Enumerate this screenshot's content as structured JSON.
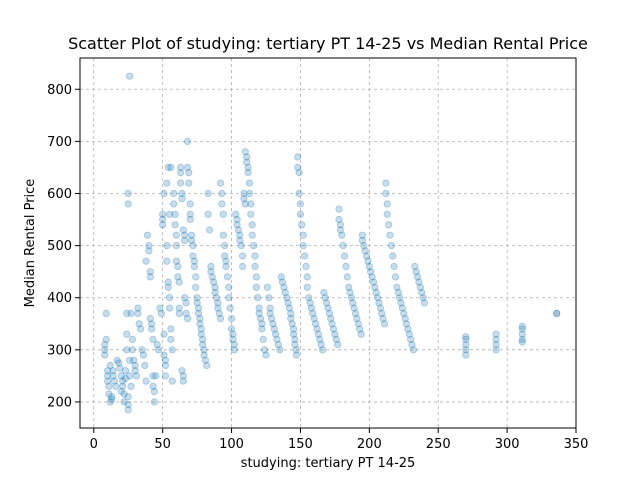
{
  "chart_data": {
    "type": "scatter",
    "title": "Scatter Plot of studying: tertiary PT 14-25 vs Median Rental Price",
    "xlabel": "studying: tertiary PT 14-25",
    "ylabel": "Median Rental Price",
    "xlim": [
      -10,
      350
    ],
    "ylim": [
      150,
      860
    ],
    "xticks": [
      0,
      50,
      100,
      150,
      200,
      250,
      300,
      350
    ],
    "yticks": [
      200,
      300,
      400,
      500,
      600,
      700,
      800
    ],
    "grid": true,
    "point_color": "#1f77b4",
    "point_alpha": 0.25,
    "points": [
      [
        8,
        310
      ],
      [
        8,
        300
      ],
      [
        8,
        290
      ],
      [
        9,
        320
      ],
      [
        9,
        370
      ],
      [
        10,
        260
      ],
      [
        10,
        250
      ],
      [
        10,
        240
      ],
      [
        11,
        230
      ],
      [
        11,
        215
      ],
      [
        12,
        270
      ],
      [
        12,
        200
      ],
      [
        13,
        205
      ],
      [
        13,
        210
      ],
      [
        14,
        250
      ],
      [
        14,
        260
      ],
      [
        15,
        240
      ],
      [
        16,
        230
      ],
      [
        17,
        280
      ],
      [
        18,
        275
      ],
      [
        19,
        265
      ],
      [
        20,
        250
      ],
      [
        20,
        220
      ],
      [
        21,
        240
      ],
      [
        21,
        230
      ],
      [
        22,
        215
      ],
      [
        22,
        200
      ],
      [
        23,
        260
      ],
      [
        23,
        245
      ],
      [
        24,
        370
      ],
      [
        24,
        330
      ],
      [
        24,
        300
      ],
      [
        25,
        185
      ],
      [
        25,
        195
      ],
      [
        25,
        210
      ],
      [
        25,
        600
      ],
      [
        25,
        580
      ],
      [
        26,
        825
      ],
      [
        26,
        280
      ],
      [
        26,
        250
      ],
      [
        27,
        370
      ],
      [
        27,
        230
      ],
      [
        28,
        320
      ],
      [
        28,
        300
      ],
      [
        29,
        280
      ],
      [
        30,
        270
      ],
      [
        30,
        260
      ],
      [
        31,
        250
      ],
      [
        32,
        380
      ],
      [
        32,
        370
      ],
      [
        33,
        350
      ],
      [
        34,
        340
      ],
      [
        35,
        300
      ],
      [
        36,
        290
      ],
      [
        37,
        270
      ],
      [
        38,
        240
      ],
      [
        38,
        470
      ],
      [
        39,
        520
      ],
      [
        40,
        500
      ],
      [
        40,
        490
      ],
      [
        41,
        450
      ],
      [
        41,
        440
      ],
      [
        41,
        360
      ],
      [
        42,
        350
      ],
      [
        42,
        340
      ],
      [
        43,
        320
      ],
      [
        43,
        250
      ],
      [
        43,
        230
      ],
      [
        44,
        220
      ],
      [
        44,
        200
      ],
      [
        45,
        250
      ],
      [
        46,
        310
      ],
      [
        47,
        300
      ],
      [
        48,
        380
      ],
      [
        49,
        370
      ],
      [
        50,
        560
      ],
      [
        50,
        550
      ],
      [
        50,
        540
      ],
      [
        51,
        600
      ],
      [
        51,
        330
      ],
      [
        51,
        290
      ],
      [
        52,
        280
      ],
      [
        52,
        270
      ],
      [
        52,
        250
      ],
      [
        53,
        620
      ],
      [
        53,
        500
      ],
      [
        53,
        470
      ],
      [
        54,
        650
      ],
      [
        54,
        430
      ],
      [
        54,
        420
      ],
      [
        55,
        560
      ],
      [
        55,
        400
      ],
      [
        55,
        380
      ],
      [
        56,
        650
      ],
      [
        56,
        340
      ],
      [
        56,
        320
      ],
      [
        57,
        300
      ],
      [
        57,
        240
      ],
      [
        58,
        600
      ],
      [
        58,
        580
      ],
      [
        59,
        560
      ],
      [
        59,
        540
      ],
      [
        60,
        520
      ],
      [
        60,
        500
      ],
      [
        60,
        470
      ],
      [
        61,
        460
      ],
      [
        61,
        440
      ],
      [
        62,
        430
      ],
      [
        62,
        380
      ],
      [
        62,
        370
      ],
      [
        63,
        650
      ],
      [
        63,
        640
      ],
      [
        63,
        620
      ],
      [
        64,
        600
      ],
      [
        64,
        590
      ],
      [
        64,
        260
      ],
      [
        65,
        250
      ],
      [
        65,
        240
      ],
      [
        65,
        530
      ],
      [
        66,
        520
      ],
      [
        66,
        510
      ],
      [
        66,
        400
      ],
      [
        67,
        390
      ],
      [
        67,
        370
      ],
      [
        68,
        360
      ],
      [
        68,
        700
      ],
      [
        68,
        650
      ],
      [
        69,
        640
      ],
      [
        69,
        620
      ],
      [
        70,
        580
      ],
      [
        70,
        560
      ],
      [
        70,
        550
      ],
      [
        71,
        520
      ],
      [
        71,
        510
      ],
      [
        72,
        500
      ],
      [
        72,
        480
      ],
      [
        73,
        470
      ],
      [
        73,
        460
      ],
      [
        74,
        440
      ],
      [
        74,
        420
      ],
      [
        75,
        400
      ],
      [
        75,
        390
      ],
      [
        76,
        380
      ],
      [
        76,
        370
      ],
      [
        77,
        360
      ],
      [
        77,
        350
      ],
      [
        78,
        340
      ],
      [
        78,
        330
      ],
      [
        79,
        320
      ],
      [
        79,
        310
      ],
      [
        80,
        300
      ],
      [
        80,
        290
      ],
      [
        81,
        280
      ],
      [
        82,
        270
      ],
      [
        83,
        600
      ],
      [
        83,
        560
      ],
      [
        84,
        530
      ],
      [
        85,
        460
      ],
      [
        85,
        450
      ],
      [
        86,
        440
      ],
      [
        87,
        430
      ],
      [
        88,
        420
      ],
      [
        88,
        410
      ],
      [
        89,
        400
      ],
      [
        90,
        390
      ],
      [
        90,
        380
      ],
      [
        91,
        370
      ],
      [
        92,
        360
      ],
      [
        92,
        620
      ],
      [
        93,
        600
      ],
      [
        93,
        580
      ],
      [
        94,
        560
      ],
      [
        94,
        520
      ],
      [
        95,
        500
      ],
      [
        95,
        480
      ],
      [
        96,
        470
      ],
      [
        96,
        460
      ],
      [
        97,
        440
      ],
      [
        98,
        420
      ],
      [
        98,
        400
      ],
      [
        99,
        380
      ],
      [
        100,
        360
      ],
      [
        100,
        340
      ],
      [
        101,
        330
      ],
      [
        101,
        320
      ],
      [
        102,
        310
      ],
      [
        102,
        300
      ],
      [
        103,
        560
      ],
      [
        104,
        550
      ],
      [
        104,
        540
      ],
      [
        105,
        530
      ],
      [
        106,
        520
      ],
      [
        106,
        510
      ],
      [
        107,
        500
      ],
      [
        108,
        480
      ],
      [
        108,
        460
      ],
      [
        109,
        600
      ],
      [
        109,
        590
      ],
      [
        110,
        580
      ],
      [
        110,
        680
      ],
      [
        111,
        670
      ],
      [
        111,
        660
      ],
      [
        112,
        650
      ],
      [
        112,
        640
      ],
      [
        113,
        620
      ],
      [
        113,
        600
      ],
      [
        114,
        580
      ],
      [
        114,
        560
      ],
      [
        115,
        540
      ],
      [
        115,
        520
      ],
      [
        116,
        500
      ],
      [
        117,
        480
      ],
      [
        117,
        460
      ],
      [
        118,
        440
      ],
      [
        118,
        420
      ],
      [
        119,
        400
      ],
      [
        120,
        380
      ],
      [
        120,
        370
      ],
      [
        121,
        360
      ],
      [
        122,
        350
      ],
      [
        122,
        340
      ],
      [
        123,
        320
      ],
      [
        124,
        300
      ],
      [
        125,
        290
      ],
      [
        126,
        420
      ],
      [
        127,
        400
      ],
      [
        128,
        380
      ],
      [
        128,
        370
      ],
      [
        129,
        360
      ],
      [
        130,
        350
      ],
      [
        131,
        340
      ],
      [
        132,
        330
      ],
      [
        133,
        320
      ],
      [
        134,
        310
      ],
      [
        135,
        300
      ],
      [
        136,
        440
      ],
      [
        137,
        430
      ],
      [
        138,
        420
      ],
      [
        139,
        410
      ],
      [
        140,
        400
      ],
      [
        141,
        390
      ],
      [
        142,
        380
      ],
      [
        143,
        370
      ],
      [
        143,
        360
      ],
      [
        144,
        350
      ],
      [
        145,
        340
      ],
      [
        145,
        330
      ],
      [
        146,
        320
      ],
      [
        146,
        310
      ],
      [
        147,
        300
      ],
      [
        147,
        290
      ],
      [
        148,
        670
      ],
      [
        148,
        650
      ],
      [
        149,
        640
      ],
      [
        149,
        600
      ],
      [
        150,
        580
      ],
      [
        150,
        560
      ],
      [
        151,
        540
      ],
      [
        152,
        520
      ],
      [
        152,
        500
      ],
      [
        153,
        480
      ],
      [
        154,
        460
      ],
      [
        155,
        440
      ],
      [
        155,
        420
      ],
      [
        156,
        400
      ],
      [
        157,
        390
      ],
      [
        158,
        380
      ],
      [
        159,
        370
      ],
      [
        160,
        360
      ],
      [
        161,
        350
      ],
      [
        162,
        340
      ],
      [
        163,
        330
      ],
      [
        164,
        320
      ],
      [
        165,
        310
      ],
      [
        166,
        300
      ],
      [
        167,
        410
      ],
      [
        168,
        400
      ],
      [
        169,
        390
      ],
      [
        170,
        380
      ],
      [
        171,
        370
      ],
      [
        172,
        360
      ],
      [
        173,
        350
      ],
      [
        174,
        340
      ],
      [
        175,
        330
      ],
      [
        176,
        320
      ],
      [
        177,
        310
      ],
      [
        178,
        570
      ],
      [
        178,
        550
      ],
      [
        179,
        540
      ],
      [
        179,
        530
      ],
      [
        180,
        520
      ],
      [
        181,
        500
      ],
      [
        182,
        480
      ],
      [
        183,
        460
      ],
      [
        184,
        440
      ],
      [
        185,
        420
      ],
      [
        186,
        410
      ],
      [
        187,
        400
      ],
      [
        188,
        390
      ],
      [
        189,
        380
      ],
      [
        190,
        370
      ],
      [
        191,
        360
      ],
      [
        192,
        350
      ],
      [
        193,
        340
      ],
      [
        194,
        330
      ],
      [
        195,
        520
      ],
      [
        195,
        510
      ],
      [
        196,
        500
      ],
      [
        197,
        490
      ],
      [
        198,
        480
      ],
      [
        199,
        470
      ],
      [
        200,
        460
      ],
      [
        201,
        450
      ],
      [
        202,
        440
      ],
      [
        203,
        430
      ],
      [
        204,
        420
      ],
      [
        205,
        410
      ],
      [
        206,
        400
      ],
      [
        207,
        390
      ],
      [
        208,
        380
      ],
      [
        209,
        370
      ],
      [
        210,
        360
      ],
      [
        211,
        350
      ],
      [
        212,
        620
      ],
      [
        212,
        600
      ],
      [
        213,
        580
      ],
      [
        213,
        560
      ],
      [
        214,
        540
      ],
      [
        215,
        520
      ],
      [
        216,
        500
      ],
      [
        217,
        480
      ],
      [
        218,
        460
      ],
      [
        219,
        440
      ],
      [
        220,
        420
      ],
      [
        221,
        410
      ],
      [
        222,
        400
      ],
      [
        223,
        390
      ],
      [
        224,
        380
      ],
      [
        225,
        370
      ],
      [
        226,
        360
      ],
      [
        227,
        350
      ],
      [
        228,
        340
      ],
      [
        229,
        330
      ],
      [
        230,
        320
      ],
      [
        231,
        310
      ],
      [
        232,
        300
      ],
      [
        233,
        460
      ],
      [
        234,
        450
      ],
      [
        235,
        440
      ],
      [
        236,
        430
      ],
      [
        237,
        420
      ],
      [
        238,
        410
      ],
      [
        239,
        400
      ],
      [
        240,
        390
      ],
      [
        270,
        325
      ],
      [
        270,
        320
      ],
      [
        270,
        310
      ],
      [
        270,
        300
      ],
      [
        270,
        290
      ],
      [
        292,
        330
      ],
      [
        292,
        320
      ],
      [
        292,
        310
      ],
      [
        292,
        300
      ],
      [
        311,
        345
      ],
      [
        311,
        340
      ],
      [
        311,
        330
      ],
      [
        311,
        320
      ],
      [
        311,
        315
      ],
      [
        336,
        370
      ],
      [
        336,
        370
      ]
    ]
  }
}
